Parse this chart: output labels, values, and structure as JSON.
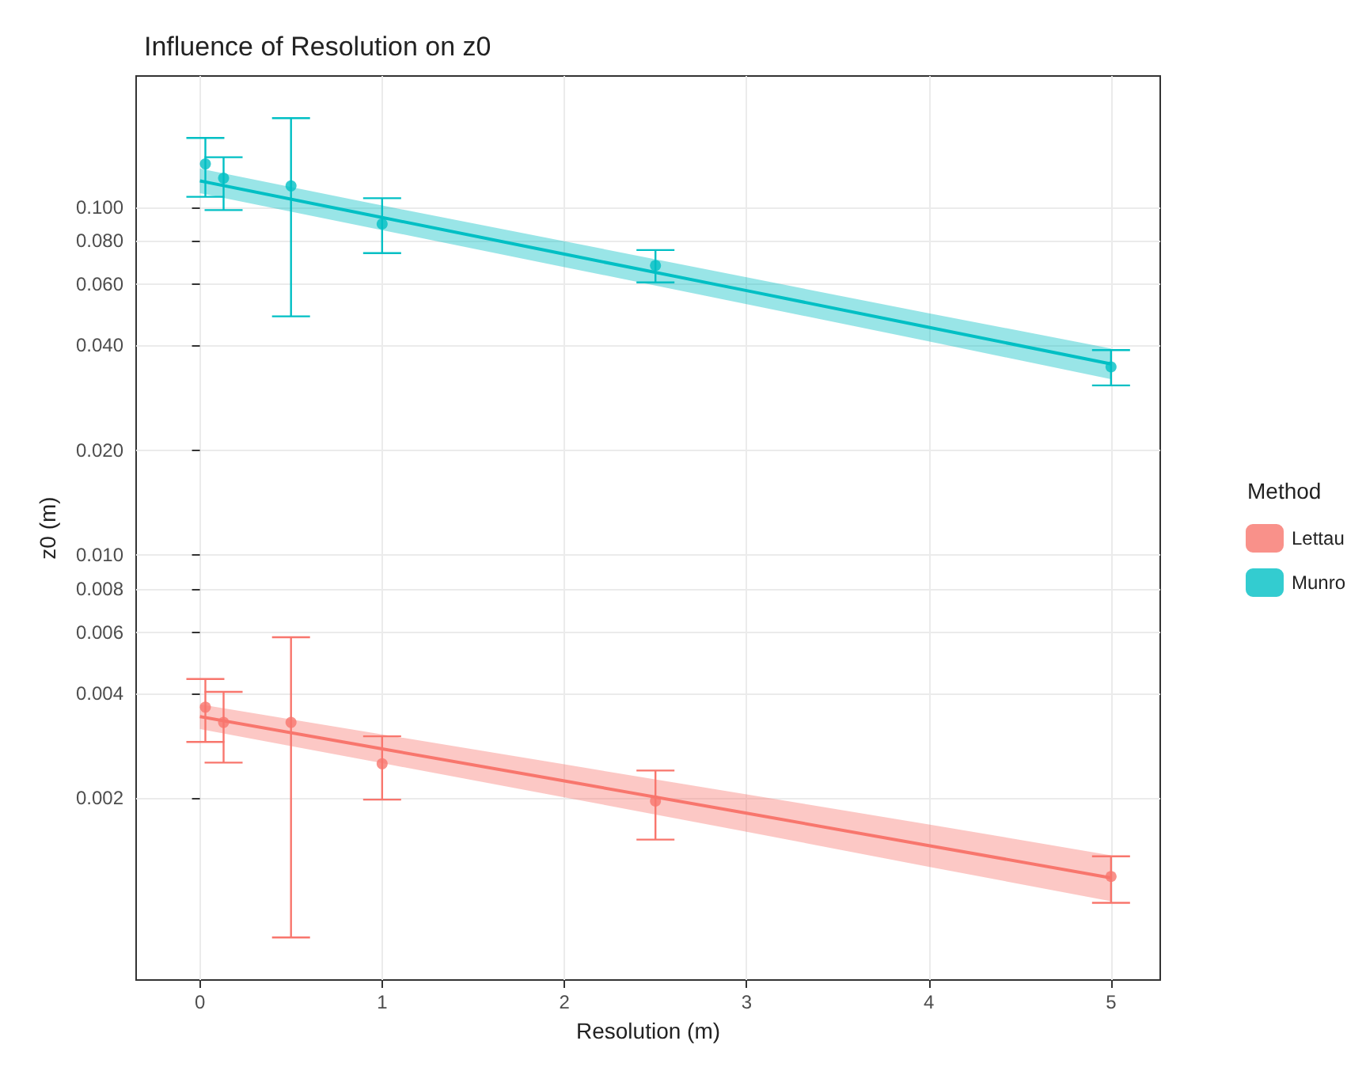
{
  "chart_data": {
    "type": "scatter",
    "title": "Influence of Resolution on z0",
    "xlabel": "Resolution (m)",
    "ylabel": "z0 (m)",
    "legend_title": "Method",
    "log": "y",
    "grid": true,
    "legend": "right",
    "marker": "circle",
    "xlim": [
      -0.35,
      5.27
    ],
    "xticks": [
      0,
      1,
      2,
      3,
      4,
      5
    ],
    "ylim": [
      0.0006,
      0.238
    ],
    "yticks": [
      {
        "value": 0.002,
        "label": "0.002"
      },
      {
        "value": 0.004,
        "label": "0.004"
      },
      {
        "value": 0.006,
        "label": "0.006"
      },
      {
        "value": 0.008,
        "label": "0.008"
      },
      {
        "value": 0.01,
        "label": "0.010"
      },
      {
        "value": 0.02,
        "label": "0.020"
      },
      {
        "value": 0.04,
        "label": "0.040"
      },
      {
        "value": 0.06,
        "label": "0.060"
      },
      {
        "value": 0.08,
        "label": "0.080"
      },
      {
        "value": 0.1,
        "label": "0.100"
      }
    ],
    "series": [
      {
        "name": "Lettau",
        "color": "#f8766d",
        "x": [
          0.03,
          0.13,
          0.5,
          1,
          2.5,
          5
        ],
        "values": [
          0.00365,
          0.0033,
          0.0033,
          0.00251,
          0.00196,
          0.00119
        ],
        "errors": [
          [
            0.0029,
            0.0044
          ],
          [
            0.00253,
            0.00404
          ],
          [
            0.000795,
            0.0058
          ],
          [
            0.00198,
            0.00301
          ],
          [
            0.00152,
            0.0024
          ],
          [
            0.001,
            0.00136
          ]
        ]
      },
      {
        "name": "Munro",
        "color": "#00bfc4",
        "x": [
          0.03,
          0.13,
          0.5,
          1,
          2.5,
          5
        ],
        "values": [
          0.133,
          0.121,
          0.115,
          0.0894,
          0.0679,
          0.0347
        ],
        "errors": [
          [
            0.107,
            0.158
          ],
          [
            0.098,
            0.139
          ],
          [
            0.0485,
            0.18
          ],
          [
            0.0737,
            0.106
          ],
          [
            0.0607,
            0.0752
          ],
          [
            0.0307,
            0.0388
          ]
        ]
      },
      {
        "type": "line",
        "marker": "none",
        "color": "#f8766d",
        "x": [
          0,
          1,
          2,
          3,
          4,
          5
        ],
        "values": [
          0.00343,
          0.00277,
          0.00224,
          0.00181,
          0.00146,
          0.00118
        ],
        "lower": [
          0.00316,
          0.00252,
          0.00201,
          0.0016,
          0.00127,
          0.00101
        ],
        "upper": [
          0.00372,
          0.00305,
          0.0025,
          0.00205,
          0.00168,
          0.00137
        ]
      },
      {
        "type": "line",
        "marker": "none",
        "color": "#00bfc4",
        "x": [
          0,
          1,
          2,
          3,
          4,
          5
        ],
        "values": [
          0.1189,
          0.0933,
          0.0732,
          0.0575,
          0.0451,
          0.0354
        ],
        "lower": [
          0.1096,
          0.0858,
          0.0672,
          0.0526,
          0.0411,
          0.032
        ],
        "upper": [
          0.129,
          0.101,
          0.0797,
          0.0628,
          0.0495,
          0.0392
        ]
      }
    ]
  }
}
